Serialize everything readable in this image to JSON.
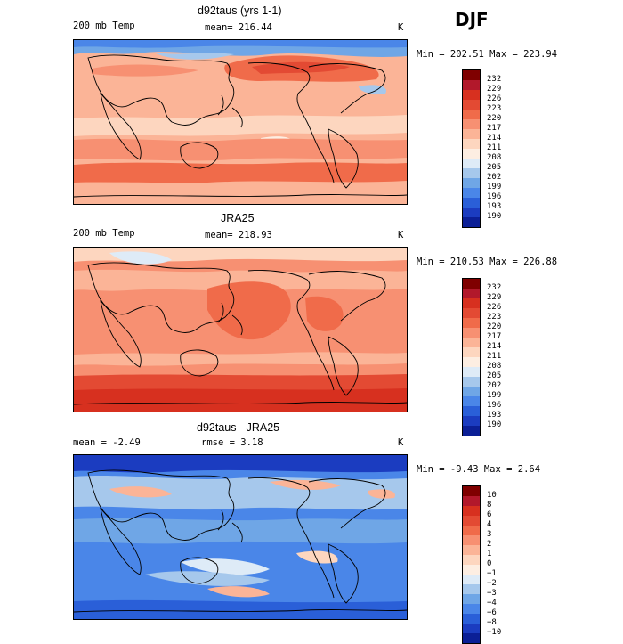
{
  "season": "DJF",
  "panels": [
    {
      "title": "d92taus (yrs 1-1)",
      "left_label": "200 mb Temp",
      "center_label": "mean= 216.44",
      "units": "K",
      "minmax": "Min = 202.51 Max = 223.94",
      "scale_labels": [
        "232",
        "229",
        "226",
        "223",
        "220",
        "217",
        "214",
        "211",
        "208",
        "205",
        "202",
        "199",
        "196",
        "193",
        "190"
      ],
      "scale_colors": [
        "#7f0000",
        "#b2182b",
        "#d7301f",
        "#e34a33",
        "#f06b4a",
        "#f79072",
        "#fbb497",
        "#fdd6bf",
        "#fdeee2",
        "#deebf7",
        "#a6c8ec",
        "#6fa6e6",
        "#4a86e8",
        "#2a5fd8",
        "#1b3cc0",
        "#0b1f96"
      ]
    },
    {
      "title": "JRA25",
      "left_label": "200 mb Temp",
      "center_label": "mean= 218.93",
      "units": "K",
      "minmax": "Min = 210.53 Max = 226.88",
      "scale_labels": [
        "232",
        "229",
        "226",
        "223",
        "220",
        "217",
        "214",
        "211",
        "208",
        "205",
        "202",
        "199",
        "196",
        "193",
        "190"
      ],
      "scale_colors": [
        "#7f0000",
        "#b2182b",
        "#d7301f",
        "#e34a33",
        "#f06b4a",
        "#f79072",
        "#fbb497",
        "#fdd6bf",
        "#fdeee2",
        "#deebf7",
        "#a6c8ec",
        "#6fa6e6",
        "#4a86e8",
        "#2a5fd8",
        "#1b3cc0",
        "#0b1f96"
      ]
    },
    {
      "title": "d92taus - JRA25",
      "left_label": "mean =   -2.49",
      "center_label": "rmse =   3.18",
      "units": "K",
      "minmax": "Min =  -9.43 Max =   2.64",
      "scale_labels": [
        "10",
        "8",
        "6",
        "4",
        "3",
        "2",
        "1",
        "0",
        "−1",
        "−2",
        "−3",
        "−4",
        "−6",
        "−8",
        "−10"
      ],
      "scale_colors": [
        "#7f0000",
        "#b2182b",
        "#d7301f",
        "#e34a33",
        "#f06b4a",
        "#f79072",
        "#fbb497",
        "#fdd6bf",
        "#fdeee2",
        "#deebf7",
        "#a6c8ec",
        "#6fa6e6",
        "#4a86e8",
        "#2a5fd8",
        "#1b3cc0",
        "#0b1f96"
      ]
    }
  ]
}
